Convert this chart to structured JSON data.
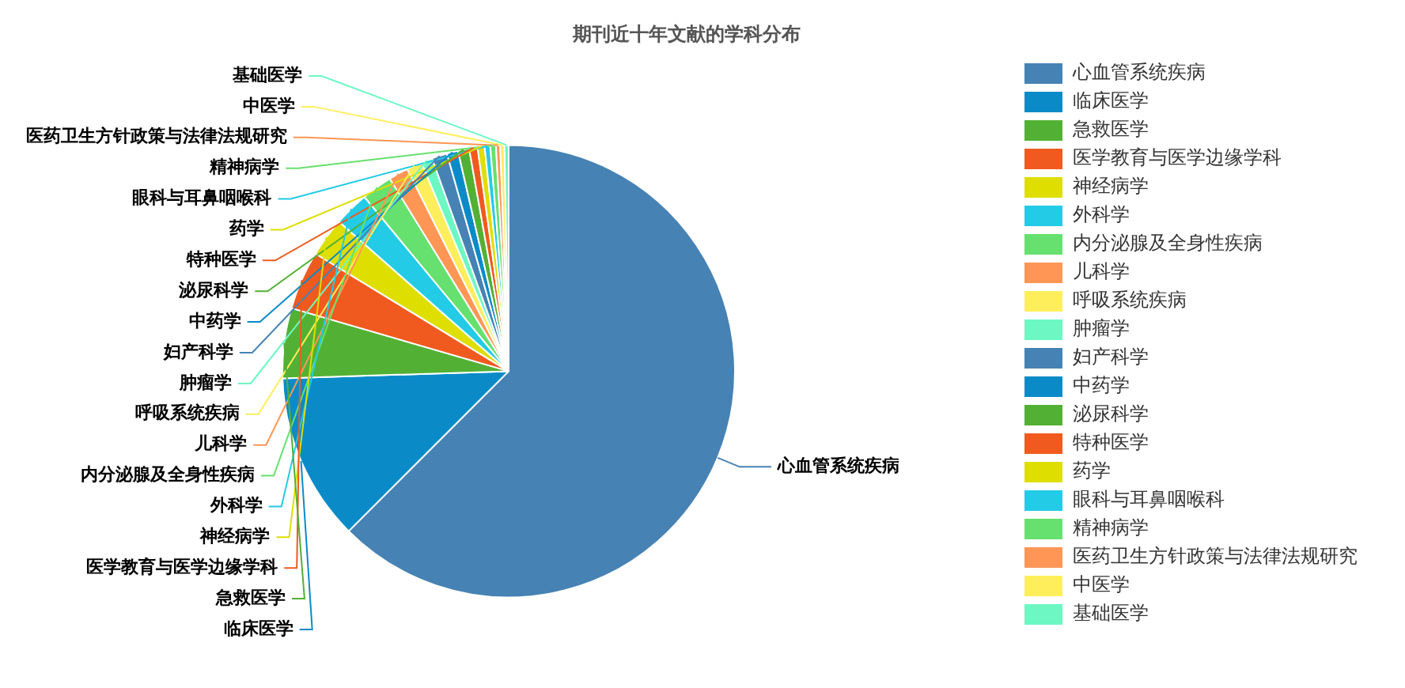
{
  "chart_data": {
    "type": "pie",
    "title": "期刊近十年文献的学科分布",
    "legend": "right",
    "categories": [
      "心血管系统疾病",
      "临床医学",
      "急救医学",
      "医学教育与医学边缘学科",
      "神经病学",
      "外科学",
      "内分泌腺及全身性疾病",
      "儿科学",
      "呼吸系统疾病",
      "肿瘤学",
      "妇产科学",
      "中药学",
      "泌尿科学",
      "特种医学",
      "药学",
      "眼科与耳鼻咽喉科",
      "精神病学",
      "医药卫生方针政策与法律法规研究",
      "中医学",
      "基础医学"
    ],
    "values": [
      62.5,
      12,
      5,
      4.2,
      2.8,
      2.5,
      2.2,
      1.4,
      1.1,
      0.8,
      1.1,
      0.8,
      0.8,
      0.6,
      0.5,
      0.4,
      0.4,
      0.3,
      0.3,
      0.3
    ],
    "colors": [
      "#4682b4",
      "#0a8bc8",
      "#52b134",
      "#f05a1e",
      "#dede00",
      "#23cbe6",
      "#66e06e",
      "#ff9655",
      "#ffee5c",
      "#6cf7c3",
      "#4682b4",
      "#0a8bc8",
      "#52b134",
      "#f05a1e",
      "#dede00",
      "#23cbe6",
      "#66e06e",
      "#ff9655",
      "#ffee5c",
      "#6cf7c3"
    ]
  }
}
